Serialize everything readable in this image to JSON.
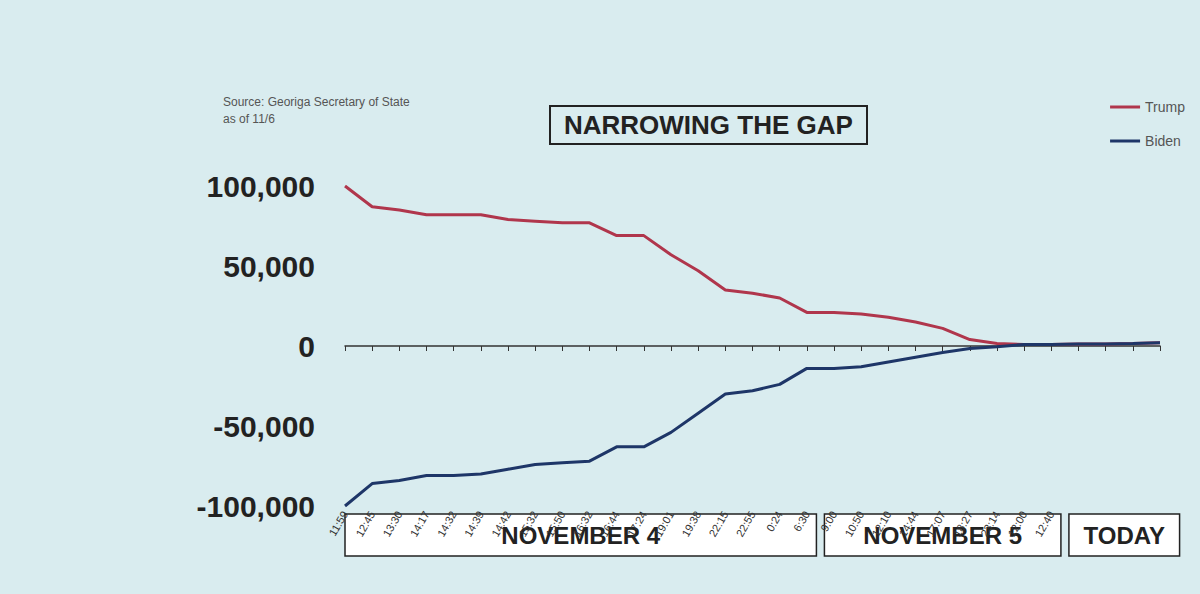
{
  "chart_data": {
    "type": "line",
    "title": "NARROWING THE GAP",
    "subtitle": [
      "Source: Georiga Secretary of State",
      "as of 11/6"
    ],
    "categories": [
      "11:59",
      "12:45",
      "13:30",
      "14:17",
      "14:32",
      "14:39",
      "14:42",
      "15:32",
      "15:50",
      "16:32",
      "16:44",
      "17:24",
      "19:01",
      "19:38",
      "22:15",
      "22:55",
      "0:24",
      "6:30",
      "9:00",
      "10:50",
      "12:10",
      "14:44",
      "17:07",
      "18:27",
      "23:14",
      "12:00",
      "12:40",
      null,
      null,
      null,
      null
    ],
    "series": [
      {
        "name": "Trump",
        "color": "#b0364c",
        "values": [
          100000,
          87000,
          85000,
          82000,
          82000,
          82000,
          79000,
          78000,
          77000,
          77000,
          69000,
          69000,
          57000,
          47000,
          35000,
          33000,
          30000,
          21000,
          21000,
          20000,
          18000,
          15000,
          11000,
          4000,
          1500,
          1000,
          1000,
          1200,
          1200,
          1500,
          2000
        ]
      },
      {
        "name": "Biden",
        "color": "#1e3668",
        "values": [
          -100000,
          -86000,
          -84000,
          -81000,
          -81000,
          -80000,
          -77000,
          -74000,
          -73000,
          -72000,
          -63000,
          -63000,
          -54000,
          -42000,
          -30000,
          -28000,
          -24000,
          -14000,
          -14000,
          -13000,
          -10000,
          -7000,
          -4000,
          -1500,
          -500,
          1000,
          1000,
          1200,
          1200,
          1500,
          2000
        ]
      }
    ],
    "ylim": [
      -100000,
      100000
    ],
    "yticks": [
      {
        "value": -100000,
        "label": "-100,000"
      },
      {
        "value": -50000,
        "label": "-50,000"
      },
      0,
      {
        "value": 50000,
        "label": "50,000"
      },
      {
        "value": 100000,
        "label": "100,000"
      }
    ],
    "annotations": [
      {
        "text": "NOVEMBER 4",
        "first": 0,
        "last": 17
      },
      {
        "text": "NOVEMBER 5",
        "first": 18,
        "last": 26
      },
      {
        "text": "TODAY",
        "first": 27,
        "last": 30
      }
    ],
    "legend": "top-right",
    "grid": false
  }
}
